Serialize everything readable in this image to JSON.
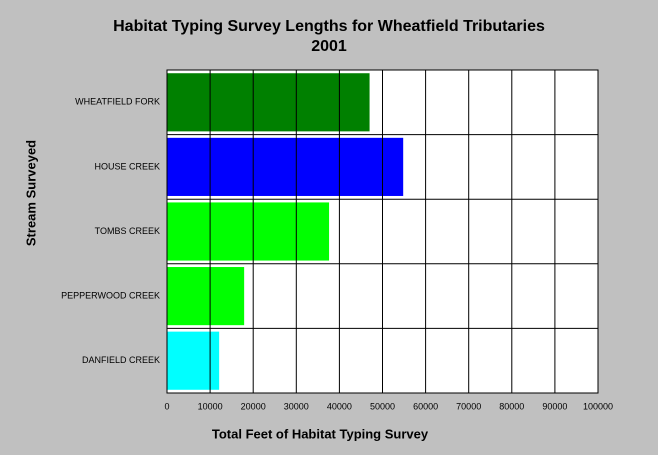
{
  "chart_data": {
    "type": "hbar",
    "title": "Habitat Typing Survey Lengths for Wheatfield Tributaries",
    "subtitle": "2001",
    "x_label": "Total Feet of Habitat Typing Survey",
    "y_label": "Stream Surveyed",
    "categories": [
      "WHEATFIELD FORK",
      "HOUSE CREEK",
      "TOMBS CREEK",
      "PEPPERWOOD CREEK",
      "DANFIELD CREEK"
    ],
    "values": [
      47000,
      54800,
      37600,
      17900,
      12100
    ],
    "colors": [
      "#008000",
      "#0000ff",
      "#00ff00",
      "#00ff00",
      "#00ffff"
    ],
    "xlim": [
      0,
      100000
    ],
    "xticks": [
      0,
      10000,
      20000,
      30000,
      40000,
      50000,
      60000,
      70000,
      80000,
      90000,
      100000
    ],
    "grid": true
  }
}
